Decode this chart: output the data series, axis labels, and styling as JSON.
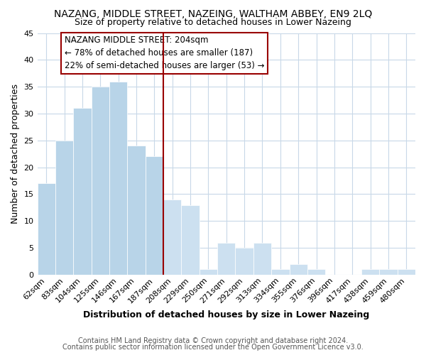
{
  "title": "NAZANG, MIDDLE STREET, NAZEING, WALTHAM ABBEY, EN9 2LQ",
  "subtitle": "Size of property relative to detached houses in Lower Nazeing",
  "xlabel": "Distribution of detached houses by size in Lower Nazeing",
  "ylabel": "Number of detached properties",
  "footer_lines": [
    "Contains HM Land Registry data © Crown copyright and database right 2024.",
    "Contains public sector information licensed under the Open Government Licence v3.0."
  ],
  "bin_labels": [
    "62sqm",
    "83sqm",
    "104sqm",
    "125sqm",
    "146sqm",
    "167sqm",
    "187sqm",
    "208sqm",
    "229sqm",
    "250sqm",
    "271sqm",
    "292sqm",
    "313sqm",
    "334sqm",
    "355sqm",
    "376sqm",
    "396sqm",
    "417sqm",
    "438sqm",
    "459sqm",
    "480sqm"
  ],
  "bar_values": [
    17,
    25,
    31,
    35,
    36,
    24,
    22,
    14,
    13,
    1,
    6,
    5,
    6,
    1,
    2,
    1,
    0,
    0,
    1,
    1,
    1
  ],
  "bar_color_left": "#b8d4e8",
  "bar_color_right": "#cce0f0",
  "vline_x_index": 7,
  "vline_color": "#990000",
  "ylim": [
    0,
    45
  ],
  "yticks": [
    0,
    5,
    10,
    15,
    20,
    25,
    30,
    35,
    40,
    45
  ],
  "annotation_title": "NAZANG MIDDLE STREET: 204sqm",
  "annotation_line1": "← 78% of detached houses are smaller (187)",
  "annotation_line2": "22% of semi-detached houses are larger (53) →",
  "annotation_box_facecolor": "#ffffff",
  "annotation_box_edgecolor": "#990000",
  "background_color": "#ffffff",
  "grid_color": "#c8d8e8",
  "title_fontsize": 10,
  "subtitle_fontsize": 9,
  "axis_label_fontsize": 9,
  "tick_fontsize": 8,
  "footer_fontsize": 7
}
